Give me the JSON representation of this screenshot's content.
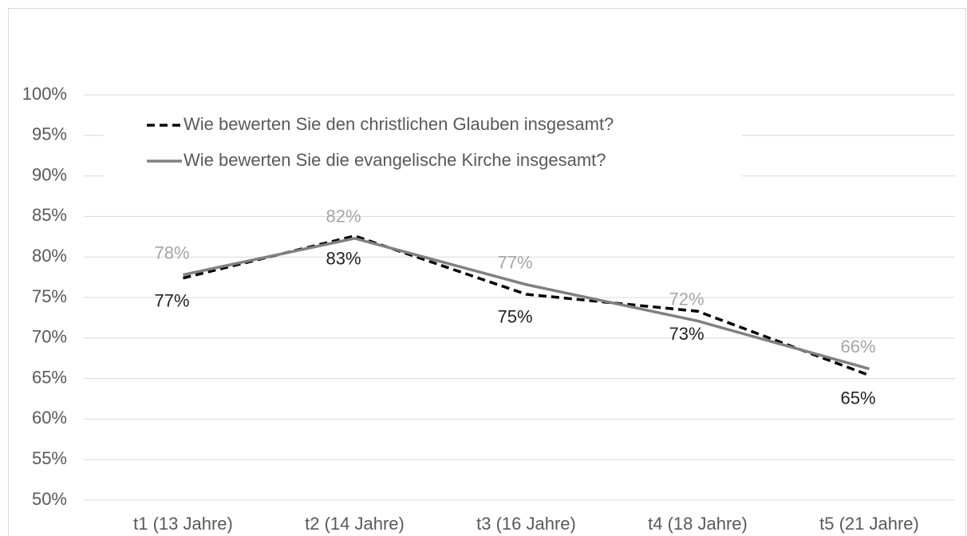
{
  "chart_data": {
    "type": "line",
    "categories": [
      "t1 (13 Jahre)",
      "t2 (14 Jahre)",
      "t3 (16 Jahre)",
      "t4 (18 Jahre)",
      "t5 (21 Jahre)"
    ],
    "series": [
      {
        "name": "Wie bewerten Sie den christlichen Glauben insgesamt?",
        "color": "#000000",
        "dashed": true,
        "values": [
          77.4,
          82.6,
          75.4,
          73.3,
          65.4
        ],
        "value_labels": [
          "77%",
          "83%",
          "75%",
          "73%",
          "65%"
        ],
        "label_color": "#222222"
      },
      {
        "name": "Wie bewerten Sie die evangelische Kirche insgesamt?",
        "color": "#808080",
        "dashed": false,
        "values": [
          77.8,
          82.3,
          76.6,
          72.1,
          66.2
        ],
        "value_labels": [
          "78%",
          "82%",
          "77%",
          "72%",
          "66%"
        ],
        "label_color": "#a6a6a6"
      }
    ],
    "ylim": [
      50,
      100
    ],
    "yticks": [
      {
        "value": 50,
        "label": "50%"
      },
      {
        "value": 55,
        "label": "55%"
      },
      {
        "value": 60,
        "label": "60%"
      },
      {
        "value": 65,
        "label": "65%"
      },
      {
        "value": 70,
        "label": "70%"
      },
      {
        "value": 75,
        "label": "75%"
      },
      {
        "value": 80,
        "label": "80%"
      },
      {
        "value": 85,
        "label": "85%"
      },
      {
        "value": 90,
        "label": "90%"
      },
      {
        "value": 95,
        "label": "95%"
      },
      {
        "value": 100,
        "label": "100%"
      }
    ],
    "grid": true,
    "legend": "upper left"
  }
}
